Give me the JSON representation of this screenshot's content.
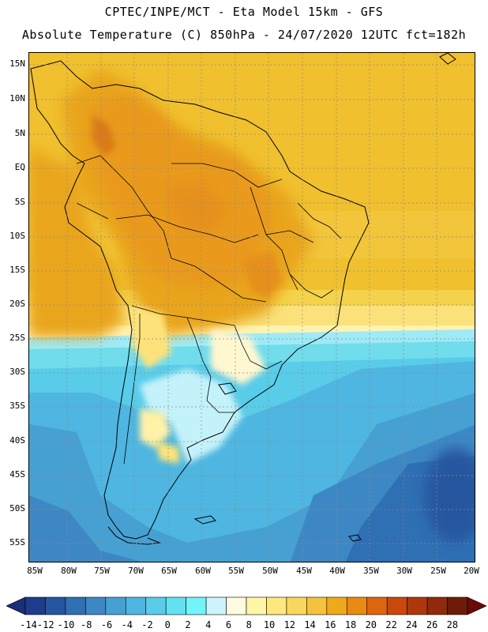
{
  "header": {
    "line1": "CPTEC/INPE/MCT -  Eta Model 15km - GFS",
    "line2": "Absolute Temperature (C) 850hPa - 24/07/2020 12UTC fct=182h"
  },
  "axes": {
    "latitude_labels": [
      "15N",
      "10N",
      "5N",
      "EQ",
      "5S",
      "10S",
      "15S",
      "20S",
      "25S",
      "30S",
      "35S",
      "40S",
      "45S",
      "50S",
      "55S"
    ],
    "longitude_labels": [
      "85W",
      "80W",
      "75W",
      "70W",
      "65W",
      "60W",
      "55W",
      "50W",
      "45W",
      "40W",
      "35W",
      "30W",
      "25W",
      "20W"
    ]
  },
  "colorbar": {
    "labels": [
      "-14",
      "-12",
      "-10",
      "-8",
      "-6",
      "-4",
      "-2",
      "0",
      "2",
      "4",
      "6",
      "8",
      "10",
      "12",
      "14",
      "16",
      "18",
      "20",
      "22",
      "24",
      "26",
      "28"
    ],
    "colors": [
      "#1e3c8c",
      "#2656a0",
      "#2f6fb4",
      "#3d88c4",
      "#47a0d2",
      "#4eb6e0",
      "#58cce8",
      "#62e2f0",
      "#72f4f8",
      "#ccf4fa",
      "#fffae0",
      "#fff6a8",
      "#fde77f",
      "#f9d75e",
      "#f4c23e",
      "#eeaa1a",
      "#e88a14",
      "#de6610",
      "#c9480e",
      "#b0360c",
      "#902a0a",
      "#6e1c08"
    ],
    "under_color": "#1a2f78",
    "over_color": "#6a0a0a"
  }
}
